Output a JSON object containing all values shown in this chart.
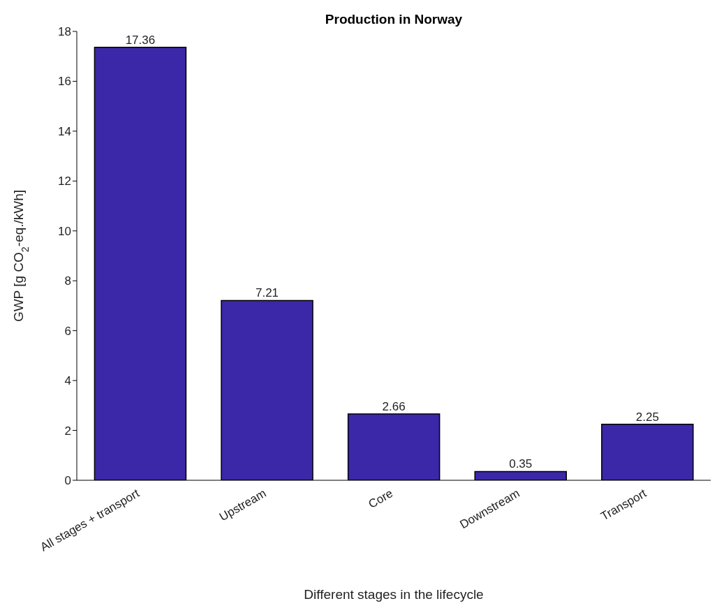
{
  "chart_data": {
    "type": "bar",
    "title": "Production in Norway",
    "xlabel": "Different stages in the lifecycle",
    "ylabel": "GWP [g CO$_{2}$-eq./kWh]",
    "categories": [
      "All stages + transport",
      "Upstream",
      "Core",
      "Downstream",
      "Transport"
    ],
    "values": [
      17.36,
      7.21,
      2.66,
      0.35,
      2.25
    ],
    "color": "#3a28a8",
    "ylim": [
      0,
      18
    ],
    "yticks": [
      0,
      2,
      4,
      6,
      8,
      10,
      12,
      14,
      16,
      18
    ],
    "grid": false,
    "data_labels": true
  }
}
